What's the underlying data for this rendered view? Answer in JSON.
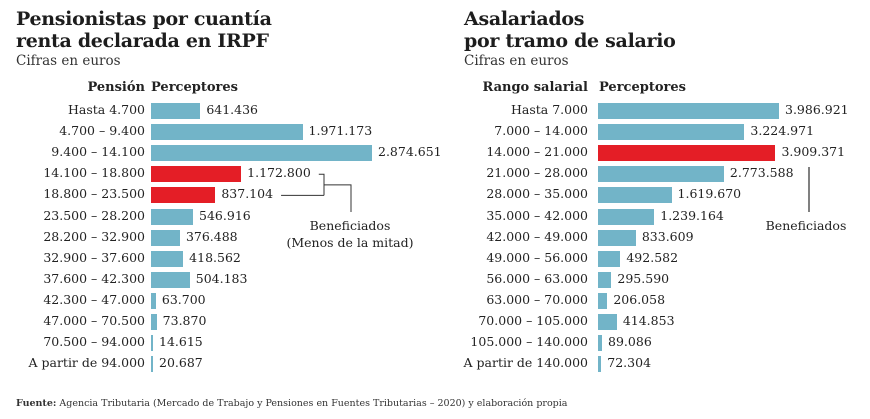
{
  "chart_data": [
    {
      "type": "bar",
      "orientation": "horizontal",
      "title": "Pensionistas por cuantía renta declarada en IRPF",
      "title_lines": [
        "Pensionistas por cuantía",
        "renta declarada en IRPF"
      ],
      "subtitle": "Cifras en euros",
      "category_header": "Pensión",
      "value_header": "Perceptores",
      "categories": [
        "Hasta 4.700",
        "4.700 – 9.400",
        "9.400 – 14.100",
        "14.100 – 18.800",
        "18.800 – 23.500",
        "23.500 – 28.200",
        "28.200 – 32.900",
        "32.900 – 37.600",
        "37.600 – 42.300",
        "42.300 – 47.000",
        "47.000 – 70.500",
        "70.500 – 94.000",
        "A partir de 94.000"
      ],
      "values": [
        641436,
        1971173,
        2874651,
        1172800,
        837104,
        546916,
        376488,
        418562,
        504183,
        63700,
        73870,
        14615,
        20687
      ],
      "value_labels": [
        "641.436",
        "1.971.173",
        "2.874.651",
        "1.172.800",
        "837.104",
        "546.916",
        "376.488",
        "418.562",
        "504.183",
        "63.700",
        "73.870",
        "14.615",
        "20.687"
      ],
      "highlighted": [
        3,
        4
      ],
      "annotation": {
        "lines": [
          "Beneficiados",
          "(Menos de la mitad)"
        ],
        "targets": [
          3,
          4
        ]
      }
    },
    {
      "type": "bar",
      "orientation": "horizontal",
      "title": "Asalariados por tramo de salario",
      "title_lines": [
        "Asalariados",
        "por tramo de salario"
      ],
      "subtitle": "Cifras en euros",
      "category_header": "Rango salarial",
      "value_header": "Perceptores",
      "categories": [
        "Hasta 7.000",
        "7.000 – 14.000",
        "14.000 – 21.000",
        "21.000 – 28.000",
        "28.000 – 35.000",
        "35.000 – 42.000",
        "42.000 – 49.000",
        "49.000 – 56.000",
        "56.000 – 63.000",
        "63.000 – 70.000",
        "70.000 – 105.000",
        "105.000 – 140.000",
        "A partir de 140.000"
      ],
      "values": [
        3986921,
        3224971,
        3909371,
        2773588,
        1619670,
        1239164,
        833609,
        492582,
        295590,
        206058,
        414853,
        89086,
        72304
      ],
      "value_labels": [
        "3.986.921",
        "3.224.971",
        "3.909.371",
        "2.773.588",
        "1.619.670",
        "1.239.164",
        "833.609",
        "492.582",
        "295.590",
        "206.058",
        "414.853",
        "89.086",
        "72.304"
      ],
      "highlighted": [
        2
      ],
      "annotation": {
        "lines": [
          "Beneficiados"
        ],
        "targets": [
          2
        ]
      }
    }
  ],
  "colors": {
    "bar": "#72b4c8",
    "highlight": "#e41e26",
    "text": "#222222",
    "line": "#333333"
  },
  "footer": {
    "label": "Fuente:",
    "text": " Agencia Tributaria (Mercado de Trabajo y Pensiones en Fuentes Tributarias – 2020) y elaboración propia"
  }
}
